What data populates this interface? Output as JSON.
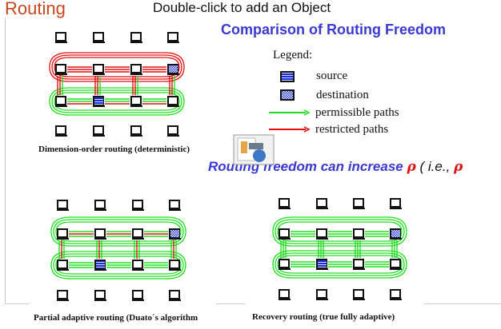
{
  "slide": {
    "title": "Routing",
    "hint": "Double-click to add an Object",
    "heading": "Comparison of Routing Freedom"
  },
  "legend": {
    "title": "Legend:",
    "source": "source",
    "destination": "destination",
    "permissible": "permissible paths",
    "restricted": "restricted paths"
  },
  "freedom": {
    "text": "Routing freedom can increase",
    "rho": "ρ",
    "ie": "( i.e.,",
    "rho2": "ρ"
  },
  "captions": {
    "dor": "Dimension-order routing (deterministic)",
    "partial": "Partial adaptive routing (Duato´s algorithm",
    "recovery": "Recovery routing (true fully adaptive)"
  },
  "colors": {
    "title": "#c8461e",
    "heading": "#3a3ad0",
    "permissible": "#22dd22",
    "restricted": "#e01010",
    "source": "#1a2fd8"
  }
}
